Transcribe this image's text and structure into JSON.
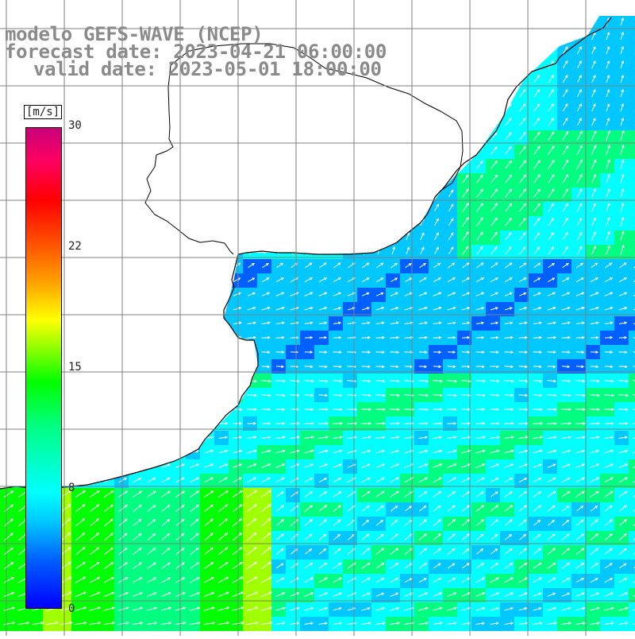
{
  "map": {
    "title_line1": "modelo GEFS-WAVE (NCEP)",
    "title_line2": "forecast date: 2023-04-21 06:00:00",
    "title_line3": "valid date: 2023-05-01 18:00:00",
    "variable": "wind speed and direction (arrows)",
    "colors": {
      "land": "#ffffff",
      "coastline": "#000000",
      "grid": "#7f7f7f",
      "title_text": "#8a8a8a"
    }
  },
  "colorbar": {
    "unit": "[m/s]",
    "ticks": [
      "30",
      "22",
      "15",
      "8",
      "0"
    ],
    "tick_values": [
      30,
      22,
      15,
      8,
      0
    ],
    "range": [
      0,
      30
    ],
    "colors": [
      "#0000ff",
      "#0060ff",
      "#00c8ff",
      "#00ffff",
      "#00ff80",
      "#00ff00",
      "#a0ff00",
      "#ffff00",
      "#ffa000",
      "#ff5000",
      "#ff0000",
      "#ff0060",
      "#c8007a"
    ]
  }
}
